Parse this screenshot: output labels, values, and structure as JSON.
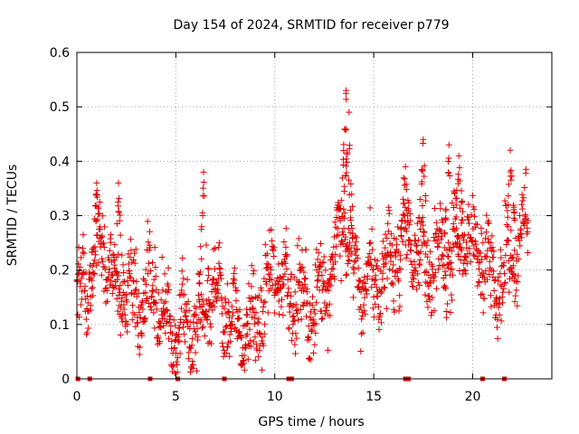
{
  "chart_data": {
    "type": "scatter",
    "title": "Day 154 of 2024, SRMTID for receiver p779",
    "xlabel": "GPS time / hours",
    "ylabel": "SRMTID / TECUs",
    "xlim": [
      0,
      24
    ],
    "ylim": [
      0,
      0.6
    ],
    "xticks": [
      0,
      5,
      10,
      15,
      20
    ],
    "xtick_labels": [
      "0",
      "5",
      "10",
      "15",
      "20"
    ],
    "yticks": [
      0,
      0.1,
      0.2,
      0.3,
      0.4,
      0.5,
      0.6
    ],
    "ytick_labels": [
      "0",
      "0.1",
      "0.2",
      "0.3",
      "0.4",
      "0.5",
      "0.6"
    ],
    "grid": true,
    "marker": "+",
    "color": "#e00000",
    "x_end": 22.8,
    "trend": [
      [
        0.0,
        0.16
      ],
      [
        0.5,
        0.17
      ],
      [
        1.0,
        0.24
      ],
      [
        1.5,
        0.23
      ],
      [
        2.0,
        0.16
      ],
      [
        2.5,
        0.16
      ],
      [
        3.0,
        0.13
      ],
      [
        3.5,
        0.17
      ],
      [
        4.0,
        0.15
      ],
      [
        4.5,
        0.1
      ],
      [
        5.0,
        0.08
      ],
      [
        5.5,
        0.09
      ],
      [
        6.0,
        0.1
      ],
      [
        6.5,
        0.13
      ],
      [
        7.0,
        0.17
      ],
      [
        7.5,
        0.12
      ],
      [
        8.0,
        0.11
      ],
      [
        8.5,
        0.08
      ],
      [
        9.0,
        0.1
      ],
      [
        9.5,
        0.14
      ],
      [
        10.0,
        0.21
      ],
      [
        10.5,
        0.17
      ],
      [
        11.0,
        0.16
      ],
      [
        11.5,
        0.14
      ],
      [
        12.0,
        0.13
      ],
      [
        12.5,
        0.18
      ],
      [
        13.0,
        0.22
      ],
      [
        13.5,
        0.3
      ],
      [
        14.0,
        0.2
      ],
      [
        14.5,
        0.17
      ],
      [
        15.0,
        0.18
      ],
      [
        15.5,
        0.2
      ],
      [
        16.0,
        0.22
      ],
      [
        16.5,
        0.25
      ],
      [
        17.0,
        0.26
      ],
      [
        17.5,
        0.22
      ],
      [
        18.0,
        0.2
      ],
      [
        18.5,
        0.22
      ],
      [
        19.0,
        0.24
      ],
      [
        19.5,
        0.26
      ],
      [
        20.0,
        0.25
      ],
      [
        20.5,
        0.22
      ],
      [
        21.0,
        0.2
      ],
      [
        21.5,
        0.19
      ],
      [
        22.0,
        0.24
      ],
      [
        22.5,
        0.27
      ],
      [
        22.8,
        0.27
      ]
    ],
    "spread": 0.035,
    "peaks": [
      {
        "x": 1.0,
        "y": 0.36
      },
      {
        "x": 2.1,
        "y": 0.36
      },
      {
        "x": 6.4,
        "y": 0.38
      },
      {
        "x": 13.6,
        "y": 0.53
      },
      {
        "x": 13.75,
        "y": 0.49
      },
      {
        "x": 17.5,
        "y": 0.44
      },
      {
        "x": 18.8,
        "y": 0.43
      },
      {
        "x": 21.9,
        "y": 0.42
      },
      {
        "x": 16.6,
        "y": 0.39
      },
      {
        "x": 19.3,
        "y": 0.41
      }
    ],
    "gaps": [
      0.05,
      0.65,
      3.7,
      5.1,
      7.45,
      10.7,
      10.85,
      16.6,
      16.75,
      20.5,
      21.6
    ],
    "n_points": 1500
  }
}
